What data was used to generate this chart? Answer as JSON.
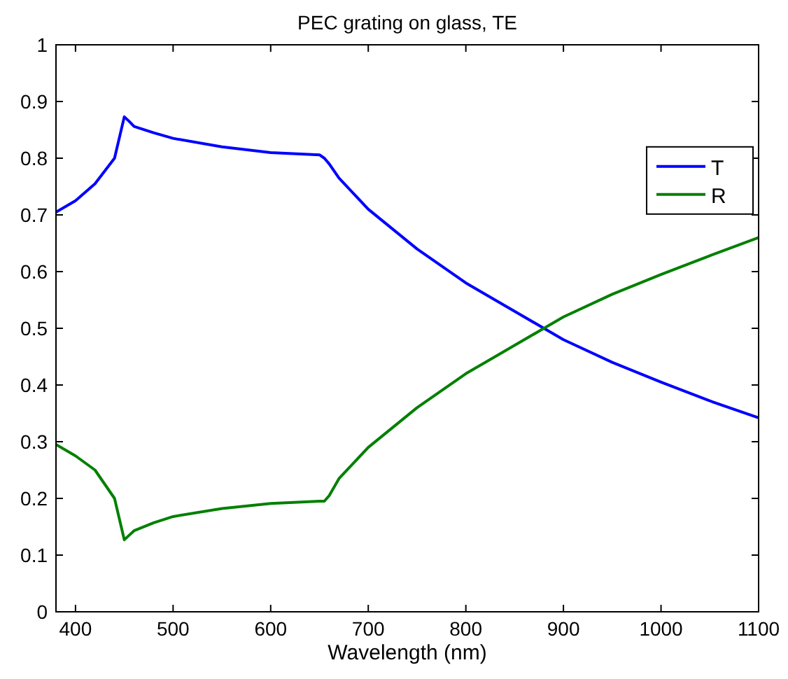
{
  "chart_data": {
    "type": "line",
    "title": "PEC grating on glass, TE",
    "xlabel": "Wavelength (nm)",
    "x": [
      380,
      400,
      420,
      440,
      450,
      455,
      460,
      480,
      500,
      550,
      600,
      650,
      655,
      660,
      670,
      700,
      750,
      800,
      850,
      880,
      900,
      950,
      1000,
      1050,
      1100
    ],
    "series": [
      {
        "name": "T",
        "color": "#0000ff",
        "values": [
          0.705,
          0.725,
          0.755,
          0.8,
          0.873,
          0.865,
          0.856,
          0.845,
          0.835,
          0.82,
          0.81,
          0.806,
          0.8,
          0.79,
          0.765,
          0.71,
          0.64,
          0.58,
          0.53,
          0.5,
          0.48,
          0.44,
          0.405,
          0.372,
          0.342
        ]
      },
      {
        "name": "R",
        "color": "#008000",
        "values": [
          0.295,
          0.275,
          0.25,
          0.2,
          0.127,
          0.135,
          0.143,
          0.157,
          0.168,
          0.182,
          0.191,
          0.195,
          0.195,
          0.205,
          0.235,
          0.29,
          0.36,
          0.42,
          0.47,
          0.5,
          0.52,
          0.56,
          0.595,
          0.628,
          0.66
        ]
      }
    ],
    "xlim": [
      380,
      1100
    ],
    "xticks": [
      400,
      500,
      600,
      700,
      800,
      900,
      1000,
      1100
    ],
    "ylim": [
      0,
      1
    ],
    "yticks": [
      0,
      0.1,
      0.2,
      0.3,
      0.4,
      0.5,
      0.6,
      0.7,
      0.8,
      0.9,
      1
    ],
    "grid": false,
    "legend": "right",
    "marker": "none",
    "line_style": "solid"
  }
}
